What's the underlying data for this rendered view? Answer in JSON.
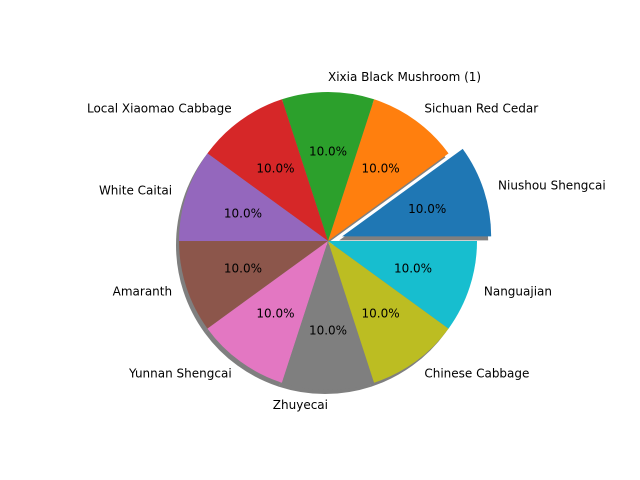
{
  "chart_data": {
    "type": "pie",
    "title": "",
    "categories": [
      "Niushou Shengcai",
      "Sichuan Red Cedar",
      "Xixia Black Mushroom (1)",
      "Local Xiaomao Cabbage",
      "White Caitai",
      "Amaranth",
      "Yunnan Shengcai",
      "Zhuyecai",
      "Chinese Cabbage",
      "Nanguajian"
    ],
    "values": [
      10.0,
      10.0,
      10.0,
      10.0,
      10.0,
      10.0,
      10.0,
      10.0,
      10.0,
      10.0
    ],
    "percent_labels": [
      "10.0%",
      "10.0%",
      "10.0%",
      "10.0%",
      "10.0%",
      "10.0%",
      "10.0%",
      "10.0%",
      "10.0%",
      "10.0%"
    ],
    "colors": [
      "#1f77b4",
      "#ff7f0e",
      "#2ca02c",
      "#d62728",
      "#9467bd",
      "#8c564b",
      "#e377c2",
      "#7f7f7f",
      "#bcbd22",
      "#17becf"
    ],
    "start_angle_deg": 0,
    "direction": "counterclockwise",
    "exploded": [
      true,
      false,
      false,
      false,
      false,
      false,
      false,
      false,
      false,
      false
    ],
    "shadow": true
  }
}
